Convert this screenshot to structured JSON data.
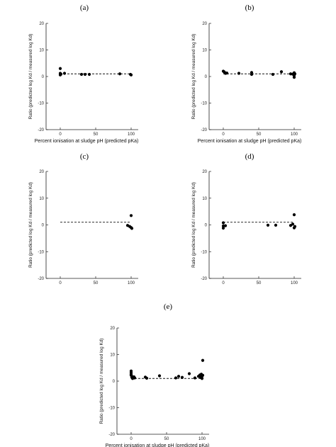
{
  "figure": {
    "panels": [
      "(a)",
      "(b)",
      "(c)",
      "(d)",
      "(e)"
    ]
  },
  "chart_data": [
    {
      "panel": "(a)",
      "type": "scatter",
      "xlabel": "Percent ionisation at sludge pH (predicted pKa)",
      "ylabel": "Ratio (predicted log Kd / measured log Kd)",
      "xlim": [
        -20,
        110
      ],
      "ylim": [
        -20,
        20
      ],
      "xticks": [
        0,
        50,
        100
      ],
      "yticks": [
        -20,
        -10,
        0,
        10,
        20
      ],
      "reference_line": {
        "y": 1,
        "style": "dashed"
      },
      "points": [
        [
          0,
          3.0
        ],
        [
          0,
          0.6
        ],
        [
          1,
          0.9
        ],
        [
          0,
          1.2
        ],
        [
          6,
          1.2
        ],
        [
          30,
          0.8
        ],
        [
          35,
          0.8
        ],
        [
          41,
          0.8
        ],
        [
          84,
          1.0
        ],
        [
          99,
          0.8
        ],
        [
          100,
          0.6
        ]
      ]
    },
    {
      "panel": "(b)",
      "type": "scatter",
      "xlabel": "Percent ionisation at sludge pH (predicted pKa)",
      "ylabel": "Ratio (predicted log Kd / measured log Kd)",
      "xlim": [
        -20,
        110
      ],
      "ylim": [
        -20,
        20
      ],
      "xticks": [
        0,
        50,
        100
      ],
      "yticks": [
        -20,
        -10,
        0,
        10,
        20
      ],
      "reference_line": {
        "y": 1,
        "style": "dashed"
      },
      "points": [
        [
          0,
          2.0
        ],
        [
          1,
          1.8
        ],
        [
          2,
          1.5
        ],
        [
          3,
          1.2
        ],
        [
          5,
          1.3
        ],
        [
          22,
          1.2
        ],
        [
          40,
          1.5
        ],
        [
          40,
          0.8
        ],
        [
          70,
          0.8
        ],
        [
          82,
          1.8
        ],
        [
          95,
          1.0
        ],
        [
          98,
          0.9
        ],
        [
          100,
          1.4
        ],
        [
          100,
          0.4
        ],
        [
          100,
          -0.3
        ],
        [
          101,
          1.0
        ]
      ]
    },
    {
      "panel": "(c)",
      "type": "scatter",
      "xlabel": "",
      "ylabel": "Ratio (predicted log Kd / measured log Kd)",
      "xlim": [
        -20,
        110
      ],
      "ylim": [
        -20,
        20
      ],
      "xticks": [
        0,
        50,
        100
      ],
      "yticks": [
        -20,
        -10,
        0,
        10,
        20
      ],
      "reference_line": {
        "y": 1,
        "style": "dashed"
      },
      "points": [
        [
          95,
          -0.2
        ],
        [
          98,
          -0.6
        ],
        [
          100,
          3.5
        ],
        [
          100,
          -1.0
        ],
        [
          101,
          -1.3
        ]
      ]
    },
    {
      "panel": "(d)",
      "type": "scatter",
      "xlabel": "",
      "ylabel": "Ratio (predicted log Kd / measured log Kd)",
      "xlim": [
        -20,
        110
      ],
      "ylim": [
        -20,
        20
      ],
      "xticks": [
        0,
        50,
        100
      ],
      "yticks": [
        -20,
        -10,
        0,
        10,
        20
      ],
      "reference_line": {
        "y": 1,
        "style": "dashed"
      },
      "points": [
        [
          0,
          0.8
        ],
        [
          0,
          -0.4
        ],
        [
          0,
          -1.2
        ],
        [
          3,
          -0.3
        ],
        [
          63,
          -0.1
        ],
        [
          74,
          -0.1
        ],
        [
          95,
          -0.2
        ],
        [
          98,
          0.3
        ],
        [
          100,
          3.8
        ],
        [
          100,
          -1.1
        ],
        [
          101,
          -0.6
        ]
      ]
    },
    {
      "panel": "(e)",
      "type": "scatter",
      "xlabel": "Percent ionisation at sludge pH (predicted pKa)",
      "ylabel": "Ratio (predicted log Kd / measured log Kd)",
      "xlim": [
        -20,
        110
      ],
      "ylim": [
        -20,
        20
      ],
      "xticks": [
        0,
        50,
        100
      ],
      "yticks": [
        -20,
        -10,
        0,
        10,
        20
      ],
      "reference_line": {
        "y": 1,
        "style": "dashed"
      },
      "points": [
        [
          0,
          3.8
        ],
        [
          0,
          3.2
        ],
        [
          0,
          2.6
        ],
        [
          0,
          2.2
        ],
        [
          1,
          1.8
        ],
        [
          1,
          1.4
        ],
        [
          2,
          1.0
        ],
        [
          3,
          1.2
        ],
        [
          4,
          1.6
        ],
        [
          5,
          1.2
        ],
        [
          20,
          1.5
        ],
        [
          22,
          1.1
        ],
        [
          40,
          2.0
        ],
        [
          63,
          1.2
        ],
        [
          67,
          1.8
        ],
        [
          72,
          1.4
        ],
        [
          82,
          2.8
        ],
        [
          90,
          1.2
        ],
        [
          95,
          1.8
        ],
        [
          97,
          2.3
        ],
        [
          98,
          1.4
        ],
        [
          99,
          2.6
        ],
        [
          100,
          1.0
        ],
        [
          100,
          1.8
        ],
        [
          101,
          7.8
        ],
        [
          101,
          2.2
        ]
      ]
    }
  ]
}
